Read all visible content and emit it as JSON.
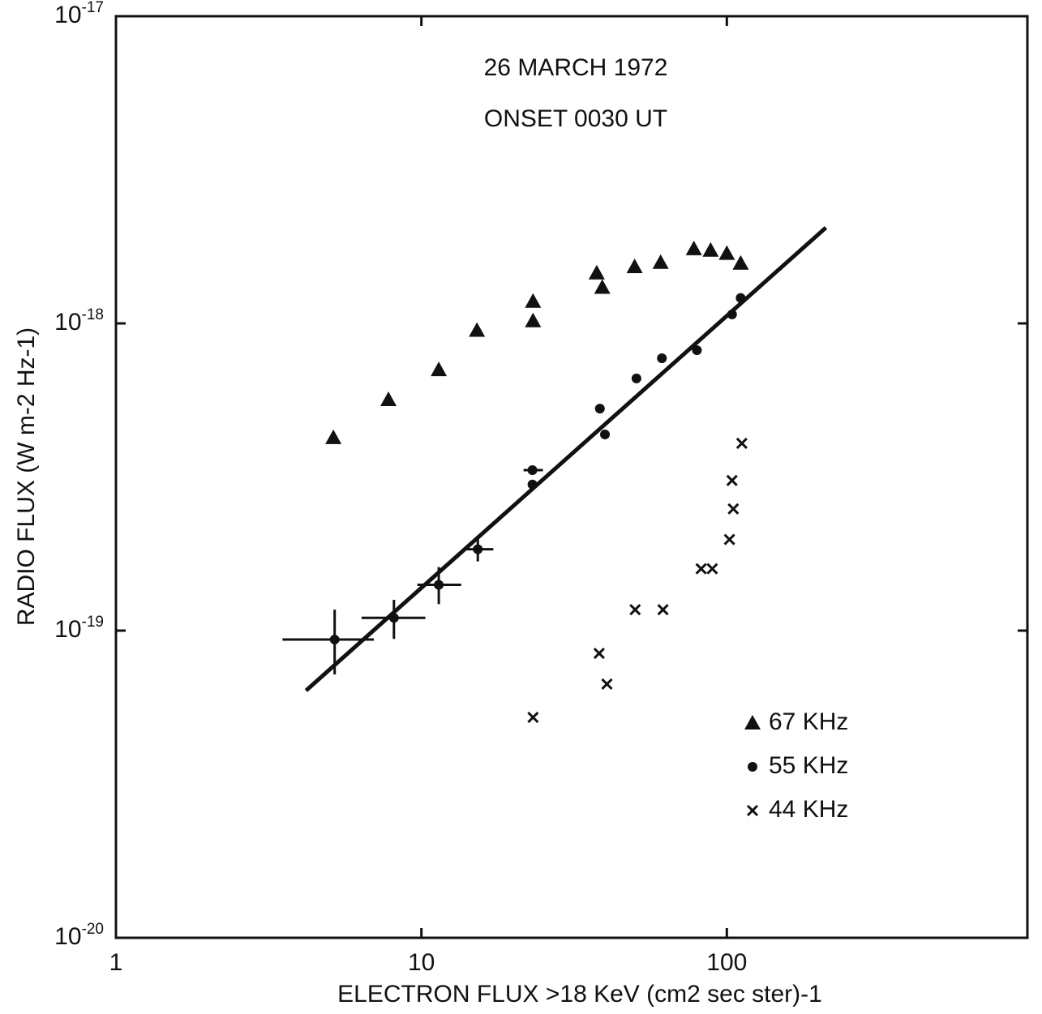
{
  "chart_data": {
    "type": "scatter",
    "title": "26 MARCH 1972",
    "subtitle": "ONSET 0030 UT",
    "x_label": "ELECTRON FLUX >18 KeV (cm2  sec ster)-1",
    "y_label": "RADIO FLUX (W m-2 Hz-1)",
    "log_x": true,
    "log_y": true,
    "xlim": [
      1,
      1000
    ],
    "ylim": [
      1e-20,
      1e-17
    ],
    "xticks": [
      1,
      10,
      100
    ],
    "yticks": [
      {
        "value": 1e-17,
        "label": "10",
        "exponent": "-17"
      },
      {
        "value": 1e-18,
        "label": "10",
        "exponent": "-18"
      },
      {
        "value": 1e-19,
        "label": "10",
        "exponent": "-19"
      },
      {
        "value": 1e-20,
        "label": "10",
        "exponent": "-20"
      }
    ],
    "series": [
      {
        "name": "67 KHz",
        "marker": "triangle",
        "color": "#111111",
        "x": [
          5.15,
          7.8,
          11.4,
          15.2,
          23.2,
          23.2,
          37.5,
          39.1,
          49.9,
          60.7,
          78,
          88.5,
          100,
          111
        ],
        "values": [
          4.25e-19,
          5.65e-19,
          7.07e-19,
          9.5e-19,
          1.18e-18,
          1.02e-18,
          1.46e-18,
          1.31e-18,
          1.53e-18,
          1.58e-18,
          1.75e-18,
          1.73e-18,
          1.69e-18,
          1.57e-18
        ]
      },
      {
        "name": "55 KHz",
        "marker": "circle",
        "color": "#111111",
        "x": [
          5.2,
          8.13,
          11.4,
          15.3,
          23.1,
          23.1,
          38.4,
          39.9,
          50.6,
          61.3,
          79.8,
          104,
          111
        ],
        "values": [
          9.35e-20,
          1.1e-19,
          1.41e-19,
          1.84e-19,
          3.33e-19,
          2.99e-19,
          5.28e-19,
          4.35e-19,
          6.62e-19,
          7.7e-19,
          8.18e-19,
          1.07e-18,
          1.21e-18
        ],
        "x_range": [
          [
            3.51,
            6.99
          ],
          [
            6.37,
            10.3
          ],
          [
            9.7,
            13.5
          ],
          [
            13.7,
            17.2
          ],
          [
            21.6,
            25.0
          ],
          null,
          null,
          null,
          null,
          null,
          null,
          null,
          null
        ],
        "y_range": [
          [
            7.2e-20,
            1.17e-19
          ],
          [
            9.4e-20,
            1.26e-19
          ],
          [
            1.22e-19,
            1.61e-19
          ],
          [
            1.68e-19,
            1.99e-19
          ],
          null,
          null,
          null,
          null,
          null,
          null,
          null,
          null,
          null
        ]
      },
      {
        "name": "44 KHz",
        "marker": "cross",
        "color": "#111111",
        "x": [
          23.2,
          38.2,
          40.5,
          50.1,
          61.8,
          82.4,
          89.6,
          102,
          105,
          104,
          112
        ],
        "values": [
          5.22e-20,
          8.43e-20,
          6.7e-20,
          1.17e-19,
          1.17e-19,
          1.59e-19,
          1.59e-19,
          1.98e-19,
          2.49e-19,
          3.08e-19,
          4.07e-19
        ]
      }
    ],
    "fit_line": {
      "x": [
        4.19,
        211
      ],
      "values": [
        6.38e-20,
        2.05e-18
      ],
      "color": "#111111"
    }
  }
}
